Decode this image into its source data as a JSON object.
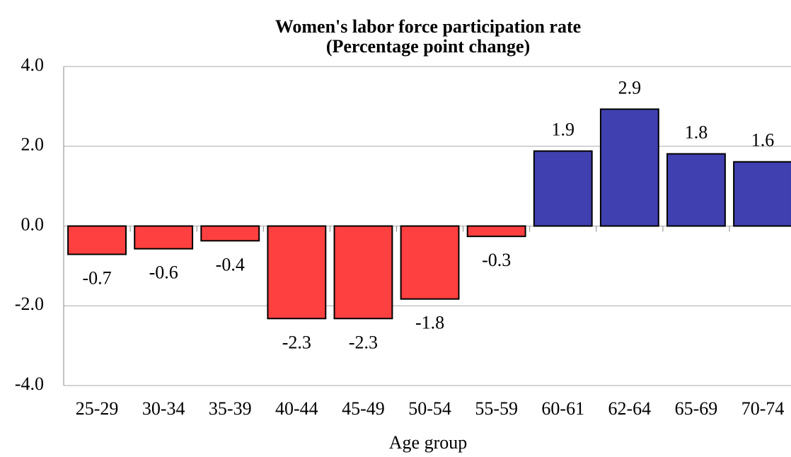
{
  "chart_data": {
    "type": "bar",
    "title": [
      "Women's labor force participation rate",
      "(Percentage point change)"
    ],
    "x_label": "Age group",
    "categories": [
      "25-29",
      "30-34",
      "35-39",
      "40-44",
      "45-49",
      "50-54",
      "55-59",
      "60-61",
      "62-64",
      "65-69",
      "70-74"
    ],
    "values": [
      -0.71,
      -0.57,
      -0.37,
      -2.32,
      -2.32,
      -1.83,
      -0.26,
      1.88,
      2.93,
      1.81,
      1.61
    ],
    "value_labels": [
      "-0.7",
      "-0.6",
      "-0.4",
      "-2.3",
      "-2.3",
      "-1.8",
      "-0.3",
      "1.9",
      "2.9",
      "1.8",
      "1.6"
    ],
    "positive_color": "#4040b0",
    "negative_color": "#ff4040",
    "ylim": [
      -4,
      4
    ],
    "yticks": [
      {
        "value": -4,
        "label": "-4.0"
      },
      {
        "value": -2,
        "label": "-2.0"
      },
      {
        "value": 0,
        "label": "0.0"
      },
      {
        "value": 2,
        "label": "2.0"
      },
      {
        "value": 4,
        "label": "4.0"
      }
    ],
    "grid": true
  }
}
